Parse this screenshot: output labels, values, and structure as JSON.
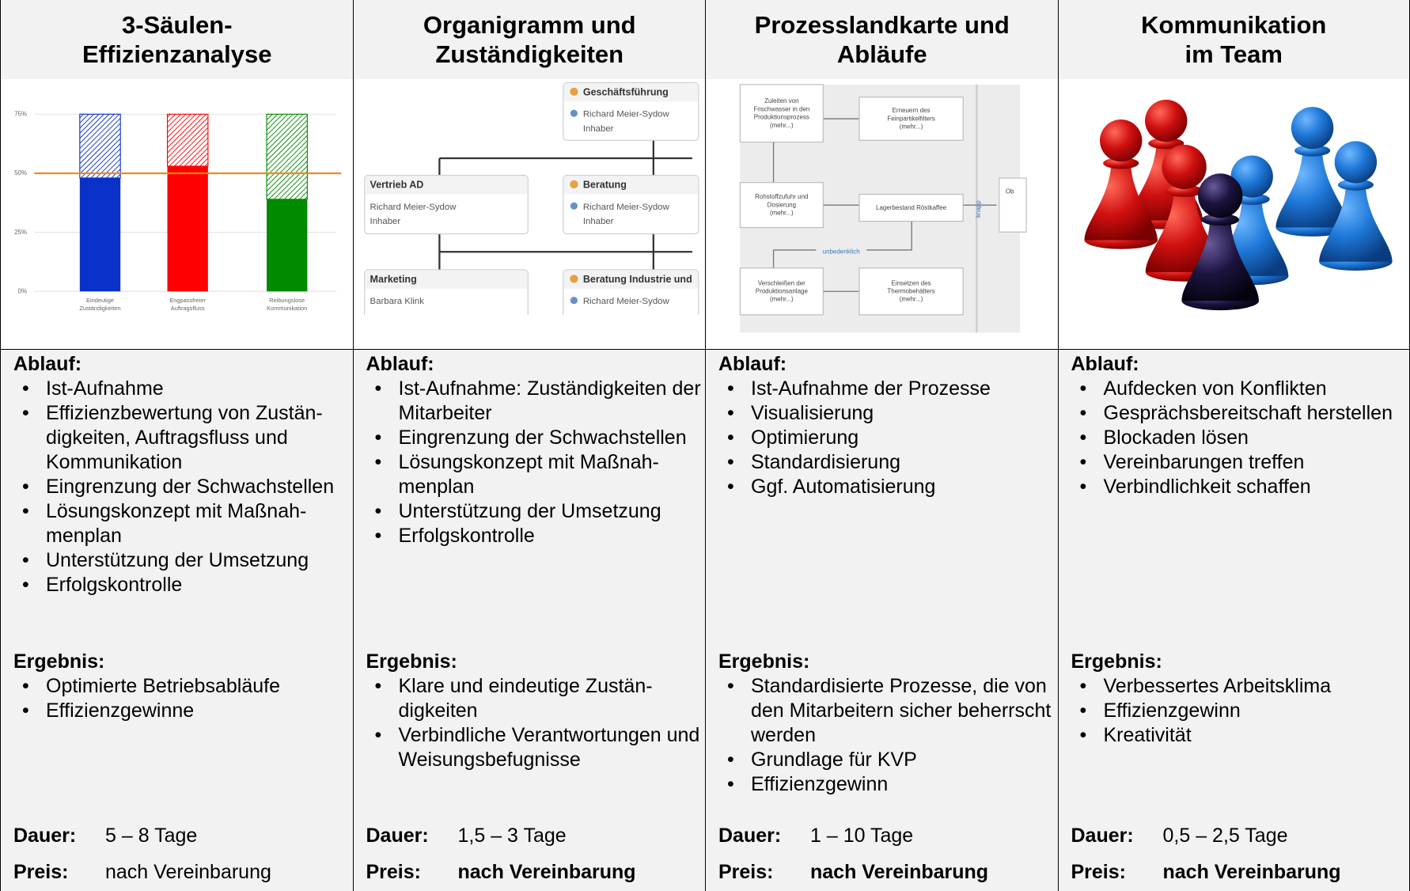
{
  "columns": [
    {
      "title_lines": [
        "3-Säulen-",
        "Effizienzanalyse"
      ],
      "image": {
        "type": "bar",
        "ylim": [
          0,
          75
        ],
        "yticks": [
          {
            "value": 0,
            "label": "0%"
          },
          {
            "value": 25,
            "label": "25%"
          },
          {
            "value": 50,
            "label": "50%"
          },
          {
            "value": 75,
            "label": "75%"
          }
        ],
        "categories": [
          [
            "Eindeutige",
            "Zuständigkeiten"
          ],
          [
            "Engpassfreier",
            "Auftragsfluss"
          ],
          [
            "Reibungslose",
            "Kommunikation"
          ]
        ],
        "series": [
          {
            "colors": [
              "#0a32c8",
              "#ff0000",
              "#008a00"
            ],
            "values": [
              48,
              53,
              39
            ]
          },
          {
            "colors": [
              "#0a32c8",
              "#ff0000",
              "#008a00"
            ],
            "hatched": true,
            "values": [
              27,
              22,
              36
            ]
          }
        ],
        "reference_line": {
          "value": 50,
          "color": "#f08a24"
        }
      },
      "ablauf_label": "Ablauf:",
      "ablauf": [
        "Ist-Aufnahme",
        "Effizienzbewertung von Zustän­digkeiten, Auftragsfluss und Kommunikation",
        "Eingrenzung der Schwachstel­len",
        "Lösungskonzept mit Maßnah­menplan",
        "Unterstützung der Umsetzung",
        "Erfolgskontrolle"
      ],
      "ergebnis_label": "Ergebnis:",
      "ergebnis": [
        "Optimierte Betriebsabläufe",
        "Effizienzgewinne"
      ],
      "dauer_label": "Dauer:",
      "dauer": "5 – 8 Tage",
      "preis_label": "Preis:",
      "preis": "nach Vereinbarung",
      "preis_bold": false
    },
    {
      "title_lines": [
        "Organigramm und",
        "Zuständigkeiten"
      ],
      "image": {
        "nodes": [
          {
            "title": "Geschäftsführung",
            "person": "Richard Meier-Sydow",
            "role": "Inhaber"
          },
          {
            "title": "Vertrieb AD",
            "person": "Richard Meier-Sydow",
            "role": "Inhaber"
          },
          {
            "title": "Beratung",
            "person": "Richard Meier-Sydow",
            "role": "Inhaber"
          },
          {
            "title": "Marketing",
            "person": "Barbara Klink"
          },
          {
            "title": "Beratung Industrie und",
            "person": "Richard Meier-Sydow"
          }
        ]
      },
      "ablauf_label": "Ablauf:",
      "ablauf": [
        "Ist-Aufnahme: Zuständigkeiten der Mitarbeiter",
        "Eingrenzung der Schwachstel­len",
        "Lösungskonzept mit Maßnah­menplan",
        "Unterstützung der Umsetzung",
        "Erfolgskontrolle"
      ],
      "ergebnis_label": "Ergebnis:",
      "ergebnis": [
        "Klare und eindeutige Zustän­digkeiten",
        "Verbindliche Verantwortungen und Weisungsbefugnisse"
      ],
      "dauer_label": "Dauer:",
      "dauer": "1,5 – 3 Tage",
      "preis_label": "Preis:",
      "preis": "nach Vereinbarung",
      "preis_bold": true
    },
    {
      "title_lines": [
        "Prozesslandkarte und",
        "Abläufe"
      ],
      "image": {
        "boxes": [
          [
            "Zuleiten von",
            "Frischwasser in den",
            "Produktionsprozess",
            "(mehr...)"
          ],
          [
            "Erneuern des",
            "Feinpartikelfilters",
            "(mehr...)"
          ],
          [
            "Rohstoffzufuhr und",
            "Dosierung",
            "(mehr...)"
          ],
          [
            "Lagerbestand Röstkaffee"
          ],
          [
            "Verschleißen der",
            "Produktionsanlage",
            "(mehr...)"
          ],
          [
            "Einsetzen des",
            "Thermobehälters",
            "(mehr...)"
          ]
        ],
        "edge_label": "unbedenklich",
        "side_label": "knapp",
        "cut_label": "Ob"
      },
      "ablauf_label": "Ablauf:",
      "ablauf": [
        "Ist-Aufnahme der Prozesse",
        "Visualisierung",
        "Optimierung",
        "Standardisierung",
        "Ggf. Automatisierung"
      ],
      "ergebnis_label": "Ergebnis:",
      "ergebnis": [
        "Standardisierte Prozesse, die von den Mitarbeitern sicher be­herrscht werden",
        "Grundlage für KVP",
        "Effizienzgewinn"
      ],
      "dauer_label": "Dauer:",
      "dauer": "1 – 10 Tage",
      "preis_label": "Preis:",
      "preis": "nach Vereinbarung",
      "preis_bold": true
    },
    {
      "title_lines": [
        "Kommunikation",
        "im Team"
      ],
      "ablauf_label": "Ablauf:",
      "ablauf": [
        "Aufdecken von Konflikten",
        "Gesprächsbereitschaft herstel­len",
        "Blockaden lösen",
        "Vereinbarungen treffen",
        "Verbindlichkeit schaffen"
      ],
      "ergebnis_label": "Ergebnis:",
      "ergebnis": [
        "Verbessertes Arbeitsklima",
        "Effizienzgewinn",
        "Kreativität"
      ],
      "dauer_label": "Dauer:",
      "dauer": "0,5 – 2,5 Tage",
      "preis_label": "Preis:",
      "preis": "nach Vereinbarung",
      "preis_bold": true
    }
  ]
}
